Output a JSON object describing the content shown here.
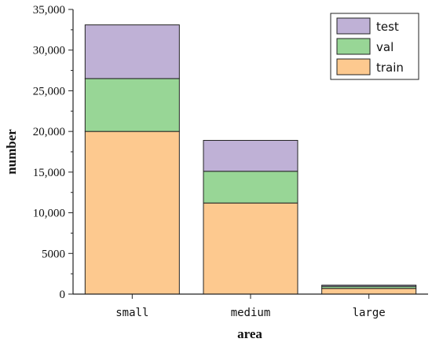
{
  "chart_data": {
    "type": "bar",
    "stacked": true,
    "categories": [
      "small",
      "medium",
      "large"
    ],
    "series": [
      {
        "name": "train",
        "values": [
          20000,
          11200,
          700
        ],
        "color": "#fdc98f"
      },
      {
        "name": "val",
        "values": [
          6500,
          3900,
          250
        ],
        "color": "#98d696"
      },
      {
        "name": "test",
        "values": [
          6600,
          3800,
          150
        ],
        "color": "#bfb1d6"
      }
    ],
    "xlabel": "area",
    "ylabel": "number",
    "ylim": [
      0,
      35000
    ],
    "yticks": [
      0,
      5000,
      10000,
      15000,
      20000,
      25000,
      30000,
      35000
    ],
    "ytick_labels": [
      "0",
      "5000",
      "10,000",
      "15,000",
      "20,000",
      "25,000",
      "30,000",
      "35,000"
    ],
    "grid": false,
    "legend_position": "top-right",
    "legend_order": [
      "test",
      "val",
      "train"
    ]
  }
}
